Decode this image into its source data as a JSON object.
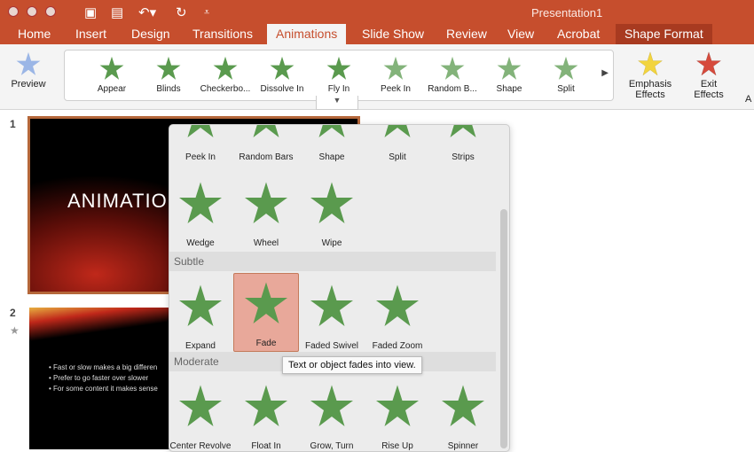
{
  "window": {
    "title": "Presentation1"
  },
  "tabs": [
    "Home",
    "Insert",
    "Design",
    "Transitions",
    "Animations",
    "Slide Show",
    "Review",
    "View",
    "Acrobat",
    "Shape Format"
  ],
  "active_tab": "Animations",
  "ribbon": {
    "preview": "Preview",
    "gallery": [
      "Appear",
      "Blinds",
      "Checkerbo...",
      "Dissolve In",
      "Fly In",
      "Peek In",
      "Random B...",
      "Shape",
      "Split"
    ],
    "emphasis": [
      "Emphasis",
      "Effects"
    ],
    "exit": [
      "Exit",
      "Effects"
    ],
    "cut_label": "A"
  },
  "slides": [
    {
      "number": "1",
      "title": "ANIMATION"
    },
    {
      "number": "2",
      "bullets": [
        "Fast or slow makes a big differen",
        "Prefer to go faster over slower",
        "For some content it makes sense"
      ]
    }
  ],
  "popup": {
    "rows": [
      [
        "Peek In",
        "Random Bars",
        "Shape",
        "Split",
        "Strips"
      ],
      [
        "Wedge",
        "Wheel",
        "Wipe"
      ]
    ],
    "sections": [
      {
        "title": "Subtle",
        "items": [
          "Expand",
          "Fade",
          "Faded Swivel",
          "Faded Zoom"
        ]
      },
      {
        "title": "Moderate",
        "items": [
          "Center Revolve",
          "Float In",
          "Grow, Turn",
          "Rise Up",
          "Spinner"
        ]
      }
    ],
    "selected": "Fade",
    "tooltip": "Text or object fades into view."
  },
  "colors": {
    "brand": "#c64e2d",
    "star": "#5a9a4e",
    "selected": "#e8a89a",
    "emphasis": "#f2d43e",
    "exit": "#d64a3c"
  }
}
